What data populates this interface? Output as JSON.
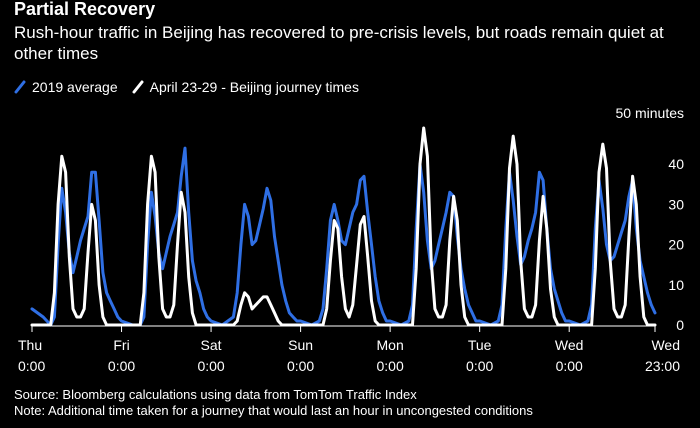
{
  "chart_data": {
    "type": "line",
    "title": "Partial Recovery",
    "subtitle": "Rush-hour traffic in Beijing has recovered to pre-crisis levels, but roads remain quiet at other times",
    "y_unit_label": "50 minutes",
    "ylim": [
      0,
      50
    ],
    "y_ticks": [
      0,
      10,
      20,
      30,
      40
    ],
    "x_tick_labels": [
      [
        "Thu",
        "0:00"
      ],
      [
        "Fri",
        "0:00"
      ],
      [
        "Sat",
        "0:00"
      ],
      [
        "Sun",
        "0:00"
      ],
      [
        "Mon",
        "0:00"
      ],
      [
        "Tue",
        "0:00"
      ],
      [
        "Wed",
        "0:00"
      ],
      [
        "Wed",
        "23:00"
      ]
    ],
    "x_ticks_hours": [
      0,
      24,
      48,
      72,
      96,
      120,
      144,
      167
    ],
    "xlim": [
      0,
      167
    ],
    "legend_position": "top-left",
    "grid": false,
    "series": [
      {
        "name": "2019 average",
        "color": "#2f6fe4",
        "points": [
          [
            0,
            4
          ],
          [
            3,
            2
          ],
          [
            5,
            0
          ],
          [
            6,
            2
          ],
          [
            7,
            20
          ],
          [
            8,
            34
          ],
          [
            9,
            28
          ],
          [
            10,
            18
          ],
          [
            11,
            13
          ],
          [
            12,
            17
          ],
          [
            13,
            21
          ],
          [
            14,
            24
          ],
          [
            15,
            27
          ],
          [
            16,
            38
          ],
          [
            17,
            38
          ],
          [
            18,
            26
          ],
          [
            19,
            13
          ],
          [
            20,
            8
          ],
          [
            21,
            6
          ],
          [
            22,
            4
          ],
          [
            23,
            2
          ],
          [
            24,
            1
          ],
          [
            27,
            0
          ],
          [
            29,
            0
          ],
          [
            30,
            2
          ],
          [
            31,
            20
          ],
          [
            32,
            33
          ],
          [
            33,
            27
          ],
          [
            34,
            18
          ],
          [
            35,
            14
          ],
          [
            36,
            18
          ],
          [
            37,
            22
          ],
          [
            38,
            25
          ],
          [
            39,
            28
          ],
          [
            40,
            37
          ],
          [
            41,
            44
          ],
          [
            42,
            28
          ],
          [
            43,
            16
          ],
          [
            44,
            11
          ],
          [
            45,
            8
          ],
          [
            46,
            4
          ],
          [
            47,
            2
          ],
          [
            48,
            1
          ],
          [
            51,
            0
          ],
          [
            54,
            2
          ],
          [
            55,
            8
          ],
          [
            56,
            20
          ],
          [
            57,
            30
          ],
          [
            58,
            27
          ],
          [
            59,
            20
          ],
          [
            60,
            21
          ],
          [
            61,
            25
          ],
          [
            62,
            29
          ],
          [
            63,
            34
          ],
          [
            64,
            31
          ],
          [
            65,
            22
          ],
          [
            66,
            16
          ],
          [
            67,
            10
          ],
          [
            68,
            6
          ],
          [
            69,
            3
          ],
          [
            70,
            2
          ],
          [
            71,
            1
          ],
          [
            72,
            1
          ],
          [
            75,
            0
          ],
          [
            77,
            1
          ],
          [
            78,
            4
          ],
          [
            79,
            14
          ],
          [
            80,
            26
          ],
          [
            81,
            30
          ],
          [
            82,
            26
          ],
          [
            83,
            21
          ],
          [
            84,
            20
          ],
          [
            85,
            24
          ],
          [
            86,
            28
          ],
          [
            87,
            30
          ],
          [
            88,
            36
          ],
          [
            89,
            37
          ],
          [
            90,
            28
          ],
          [
            91,
            20
          ],
          [
            92,
            12
          ],
          [
            93,
            6
          ],
          [
            94,
            3
          ],
          [
            95,
            1
          ],
          [
            96,
            1
          ],
          [
            99,
            0
          ],
          [
            101,
            1
          ],
          [
            102,
            5
          ],
          [
            103,
            24
          ],
          [
            104,
            40
          ],
          [
            105,
            33
          ],
          [
            106,
            21
          ],
          [
            107,
            14
          ],
          [
            108,
            16
          ],
          [
            109,
            20
          ],
          [
            110,
            24
          ],
          [
            111,
            28
          ],
          [
            112,
            33
          ],
          [
            113,
            32
          ],
          [
            114,
            22
          ],
          [
            115,
            14
          ],
          [
            116,
            9
          ],
          [
            117,
            5
          ],
          [
            118,
            3
          ],
          [
            119,
            1
          ],
          [
            120,
            1
          ],
          [
            123,
            0
          ],
          [
            125,
            1
          ],
          [
            126,
            5
          ],
          [
            127,
            24
          ],
          [
            128,
            38
          ],
          [
            129,
            31
          ],
          [
            130,
            22
          ],
          [
            131,
            15
          ],
          [
            132,
            17
          ],
          [
            133,
            21
          ],
          [
            134,
            24
          ],
          [
            135,
            28
          ],
          [
            136,
            38
          ],
          [
            137,
            36
          ],
          [
            138,
            24
          ],
          [
            139,
            14
          ],
          [
            140,
            9
          ],
          [
            141,
            6
          ],
          [
            142,
            3
          ],
          [
            143,
            1
          ],
          [
            144,
            1
          ],
          [
            147,
            0
          ],
          [
            149,
            1
          ],
          [
            150,
            5
          ],
          [
            151,
            24
          ],
          [
            152,
            36
          ],
          [
            153,
            29
          ],
          [
            154,
            20
          ],
          [
            155,
            16
          ],
          [
            156,
            17
          ],
          [
            157,
            20
          ],
          [
            158,
            23
          ],
          [
            159,
            26
          ],
          [
            160,
            32
          ],
          [
            161,
            36
          ],
          [
            162,
            24
          ],
          [
            163,
            16
          ],
          [
            164,
            12
          ],
          [
            165,
            8
          ],
          [
            166,
            5
          ],
          [
            167,
            3
          ]
        ]
      },
      {
        "name": "April 23-29 - Beijing journey times",
        "color": "#ffffff",
        "points": [
          [
            0,
            0
          ],
          [
            5,
            0
          ],
          [
            6,
            8
          ],
          [
            7,
            30
          ],
          [
            8,
            42
          ],
          [
            9,
            38
          ],
          [
            10,
            17
          ],
          [
            11,
            4
          ],
          [
            12,
            2
          ],
          [
            13,
            2
          ],
          [
            14,
            4
          ],
          [
            15,
            18
          ],
          [
            16,
            30
          ],
          [
            17,
            26
          ],
          [
            18,
            10
          ],
          [
            19,
            2
          ],
          [
            20,
            0
          ],
          [
            23,
            0
          ],
          [
            24,
            0
          ],
          [
            29,
            0
          ],
          [
            30,
            8
          ],
          [
            31,
            30
          ],
          [
            32,
            42
          ],
          [
            33,
            38
          ],
          [
            34,
            17
          ],
          [
            35,
            4
          ],
          [
            36,
            2
          ],
          [
            37,
            2
          ],
          [
            38,
            5
          ],
          [
            39,
            20
          ],
          [
            40,
            33
          ],
          [
            41,
            28
          ],
          [
            42,
            12
          ],
          [
            43,
            3
          ],
          [
            44,
            0
          ],
          [
            47,
            0
          ],
          [
            48,
            0
          ],
          [
            54,
            0
          ],
          [
            55,
            1
          ],
          [
            56,
            5
          ],
          [
            57,
            8
          ],
          [
            58,
            7
          ],
          [
            59,
            4
          ],
          [
            60,
            5
          ],
          [
            61,
            6
          ],
          [
            62,
            7
          ],
          [
            63,
            7
          ],
          [
            64,
            5
          ],
          [
            65,
            3
          ],
          [
            66,
            1
          ],
          [
            67,
            0
          ],
          [
            71,
            0
          ],
          [
            72,
            0
          ],
          [
            78,
            0
          ],
          [
            79,
            4
          ],
          [
            80,
            16
          ],
          [
            81,
            26
          ],
          [
            82,
            24
          ],
          [
            83,
            12
          ],
          [
            84,
            4
          ],
          [
            85,
            2
          ],
          [
            86,
            5
          ],
          [
            87,
            15
          ],
          [
            88,
            25
          ],
          [
            89,
            27
          ],
          [
            90,
            17
          ],
          [
            91,
            6
          ],
          [
            92,
            1
          ],
          [
            93,
            0
          ],
          [
            95,
            0
          ],
          [
            96,
            0
          ],
          [
            102,
            0
          ],
          [
            103,
            14
          ],
          [
            104,
            40
          ],
          [
            105,
            49
          ],
          [
            106,
            42
          ],
          [
            107,
            16
          ],
          [
            108,
            4
          ],
          [
            109,
            2
          ],
          [
            110,
            2
          ],
          [
            111,
            5
          ],
          [
            112,
            21
          ],
          [
            113,
            32
          ],
          [
            114,
            26
          ],
          [
            115,
            10
          ],
          [
            116,
            2
          ],
          [
            117,
            0
          ],
          [
            119,
            0
          ],
          [
            120,
            0
          ],
          [
            126,
            0
          ],
          [
            127,
            14
          ],
          [
            128,
            39
          ],
          [
            129,
            47
          ],
          [
            130,
            40
          ],
          [
            131,
            16
          ],
          [
            132,
            4
          ],
          [
            133,
            2
          ],
          [
            134,
            2
          ],
          [
            135,
            5
          ],
          [
            136,
            21
          ],
          [
            137,
            32
          ],
          [
            138,
            24
          ],
          [
            139,
            9
          ],
          [
            140,
            2
          ],
          [
            141,
            0
          ],
          [
            143,
            0
          ],
          [
            144,
            0
          ],
          [
            150,
            0
          ],
          [
            151,
            14
          ],
          [
            152,
            38
          ],
          [
            153,
            45
          ],
          [
            154,
            39
          ],
          [
            155,
            16
          ],
          [
            156,
            4
          ],
          [
            157,
            2
          ],
          [
            158,
            2
          ],
          [
            159,
            5
          ],
          [
            160,
            22
          ],
          [
            161,
            37
          ],
          [
            162,
            30
          ],
          [
            163,
            12
          ],
          [
            164,
            2
          ],
          [
            165,
            0
          ],
          [
            167,
            0
          ]
        ]
      }
    ]
  },
  "footer": {
    "source": "Source: Bloomberg calculations using data from TomTom Traffic Index",
    "note": "Note: Additional time taken for a journey that would last an hour in uncongested conditions"
  }
}
